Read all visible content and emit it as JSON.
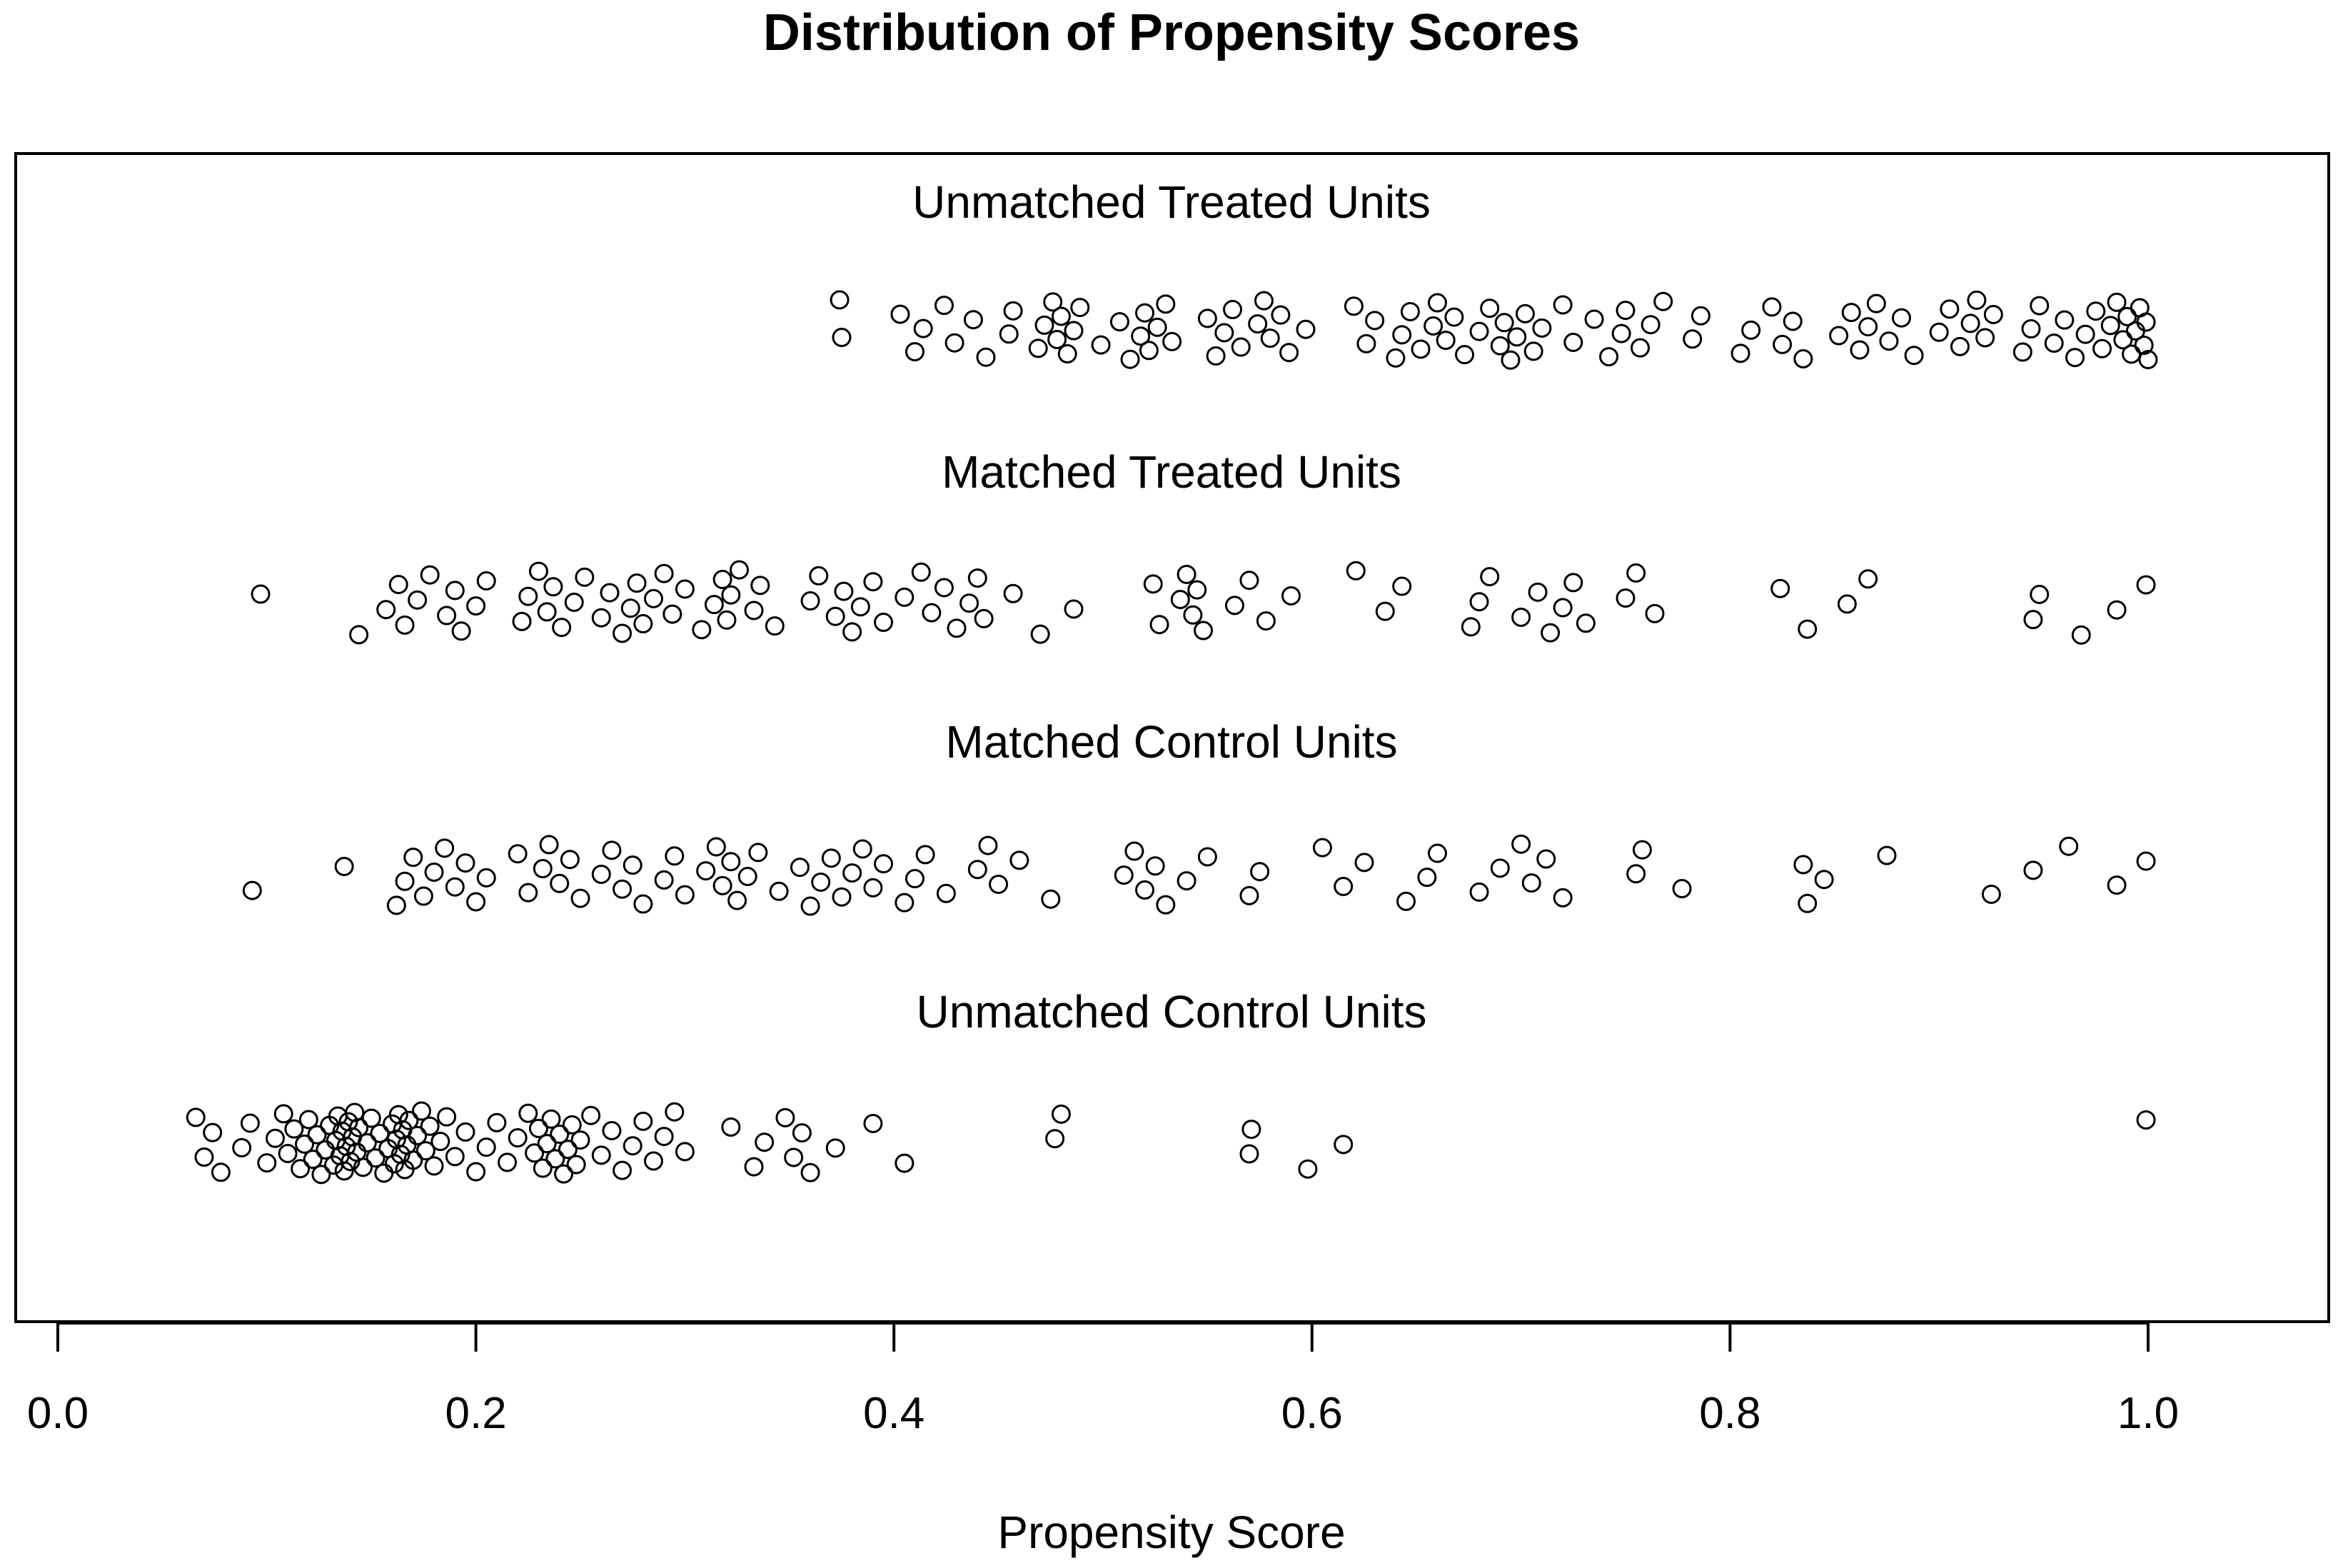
{
  "chart_data": {
    "type": "scatter",
    "title": "Distribution of Propensity Scores",
    "xlabel": "Propensity Score",
    "ylabel": "",
    "xlim": [
      0.0,
      1.1
    ],
    "x_ticks": [
      "0.0",
      "0.2",
      "0.4",
      "0.6",
      "0.8",
      "1.0"
    ],
    "grid": false,
    "series": [
      {
        "name": "Unmatched Treated Units",
        "values": [
          0.374,
          0.375,
          0.403,
          0.41,
          0.414,
          0.424,
          0.429,
          0.438,
          0.444,
          0.455,
          0.457,
          0.469,
          0.472,
          0.476,
          0.478,
          0.48,
          0.483,
          0.486,
          0.489,
          0.499,
          0.508,
          0.513,
          0.518,
          0.52,
          0.522,
          0.526,
          0.53,
          0.533,
          0.55,
          0.554,
          0.558,
          0.562,
          0.566,
          0.574,
          0.577,
          0.58,
          0.585,
          0.589,
          0.597,
          0.62,
          0.626,
          0.63,
          0.64,
          0.643,
          0.647,
          0.652,
          0.658,
          0.66,
          0.664,
          0.668,
          0.673,
          0.68,
          0.685,
          0.69,
          0.692,
          0.695,
          0.698,
          0.702,
          0.706,
          0.71,
          0.72,
          0.725,
          0.735,
          0.742,
          0.748,
          0.75,
          0.757,
          0.762,
          0.768,
          0.782,
          0.786,
          0.805,
          0.81,
          0.82,
          0.825,
          0.83,
          0.835,
          0.852,
          0.858,
          0.862,
          0.866,
          0.87,
          0.876,
          0.882,
          0.888,
          0.9,
          0.905,
          0.91,
          0.915,
          0.918,
          0.922,
          0.926,
          0.94,
          0.944,
          0.948,
          0.955,
          0.96,
          0.965,
          0.97,
          0.975,
          0.978,
          0.982,
          0.985,
          0.988,
          0.99,
          0.992,
          0.994,
          0.996,
          0.998,
          0.999,
          1.0
        ]
      },
      {
        "name": "Matched Treated Units",
        "values": [
          0.097,
          0.144,
          0.157,
          0.163,
          0.166,
          0.172,
          0.178,
          0.186,
          0.19,
          0.193,
          0.2,
          0.205,
          0.222,
          0.225,
          0.23,
          0.234,
          0.237,
          0.241,
          0.247,
          0.252,
          0.26,
          0.264,
          0.27,
          0.274,
          0.277,
          0.28,
          0.285,
          0.29,
          0.294,
          0.3,
          0.308,
          0.314,
          0.318,
          0.32,
          0.322,
          0.326,
          0.333,
          0.336,
          0.343,
          0.36,
          0.364,
          0.372,
          0.376,
          0.38,
          0.384,
          0.39,
          0.395,
          0.405,
          0.413,
          0.418,
          0.424,
          0.43,
          0.436,
          0.44,
          0.443,
          0.457,
          0.47,
          0.486,
          0.524,
          0.527,
          0.537,
          0.54,
          0.543,
          0.545,
          0.548,
          0.563,
          0.57,
          0.578,
          0.59,
          0.621,
          0.635,
          0.643,
          0.676,
          0.68,
          0.685,
          0.7,
          0.708,
          0.714,
          0.72,
          0.725,
          0.731,
          0.75,
          0.755,
          0.764,
          0.824,
          0.837,
          0.856,
          0.866,
          0.945,
          0.948,
          0.968,
          0.985,
          0.999
        ]
      },
      {
        "name": "Matched Control Units",
        "values": [
          0.093,
          0.137,
          0.162,
          0.166,
          0.17,
          0.175,
          0.18,
          0.185,
          0.19,
          0.195,
          0.2,
          0.205,
          0.22,
          0.225,
          0.232,
          0.235,
          0.24,
          0.245,
          0.25,
          0.26,
          0.265,
          0.27,
          0.275,
          0.28,
          0.29,
          0.295,
          0.3,
          0.31,
          0.315,
          0.318,
          0.322,
          0.325,
          0.33,
          0.335,
          0.345,
          0.355,
          0.36,
          0.365,
          0.37,
          0.375,
          0.38,
          0.385,
          0.39,
          0.395,
          0.405,
          0.41,
          0.415,
          0.425,
          0.44,
          0.445,
          0.45,
          0.46,
          0.475,
          0.51,
          0.515,
          0.52,
          0.525,
          0.53,
          0.54,
          0.55,
          0.57,
          0.575,
          0.605,
          0.615,
          0.625,
          0.645,
          0.655,
          0.66,
          0.68,
          0.69,
          0.7,
          0.705,
          0.712,
          0.72,
          0.755,
          0.758,
          0.777,
          0.835,
          0.837,
          0.845,
          0.875,
          0.925,
          0.945,
          0.962,
          0.985,
          0.999
        ]
      },
      {
        "name": "Unmatched Control Units",
        "values": [
          0.066,
          0.07,
          0.074,
          0.078,
          0.088,
          0.092,
          0.1,
          0.104,
          0.108,
          0.11,
          0.113,
          0.116,
          0.118,
          0.12,
          0.122,
          0.124,
          0.126,
          0.128,
          0.13,
          0.132,
          0.133,
          0.134,
          0.135,
          0.136,
          0.137,
          0.138,
          0.139,
          0.14,
          0.141,
          0.142,
          0.143,
          0.144,
          0.146,
          0.148,
          0.15,
          0.152,
          0.154,
          0.156,
          0.158,
          0.16,
          0.161,
          0.162,
          0.163,
          0.164,
          0.165,
          0.166,
          0.167,
          0.168,
          0.17,
          0.172,
          0.174,
          0.176,
          0.178,
          0.18,
          0.183,
          0.186,
          0.19,
          0.195,
          0.2,
          0.205,
          0.21,
          0.215,
          0.22,
          0.225,
          0.228,
          0.23,
          0.232,
          0.234,
          0.236,
          0.238,
          0.24,
          0.242,
          0.244,
          0.246,
          0.248,
          0.25,
          0.255,
          0.26,
          0.265,
          0.27,
          0.275,
          0.28,
          0.285,
          0.29,
          0.295,
          0.3,
          0.322,
          0.333,
          0.338,
          0.348,
          0.352,
          0.356,
          0.36,
          0.372,
          0.39,
          0.405,
          0.477,
          0.48,
          0.57,
          0.571,
          0.598,
          0.615,
          0.999
        ]
      }
    ]
  }
}
